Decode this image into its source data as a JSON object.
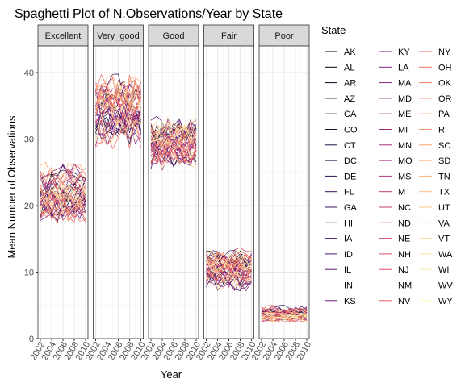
{
  "chart_data": {
    "type": "line",
    "title": "Spaghetti Plot of N.Observations/Year by State",
    "xlabel": "Year",
    "ylabel": "Mean Number of Observations",
    "x_ticks": [
      "2002",
      "2004",
      "2006",
      "2008",
      "2010"
    ],
    "y_ticks": [
      "0",
      "10",
      "20",
      "30",
      "40"
    ],
    "xlim": [
      2002,
      2010
    ],
    "ylim": [
      0,
      44
    ],
    "grid": true,
    "legend_title": "State",
    "legend_position": "right",
    "palette": "magma",
    "facets": [
      {
        "name": "Excellent",
        "center": 22,
        "spread": 3,
        "noise": 2
      },
      {
        "name": "Very_good",
        "center": 34,
        "spread": 3.5,
        "noise": 2.5
      },
      {
        "name": "Good",
        "center": 29.5,
        "spread": 2.5,
        "noise": 1.8
      },
      {
        "name": "Fair",
        "center": 10.5,
        "spread": 2,
        "noise": 1.5
      },
      {
        "name": "Poor",
        "center": 3.7,
        "spread": 0.8,
        "noise": 0.6
      }
    ],
    "states": [
      "AK",
      "AL",
      "AR",
      "AZ",
      "CA",
      "CO",
      "CT",
      "DC",
      "DE",
      "FL",
      "GA",
      "HI",
      "IA",
      "ID",
      "IL",
      "IN",
      "KS",
      "KY",
      "LA",
      "MA",
      "MD",
      "ME",
      "MI",
      "MN",
      "MO",
      "MS",
      "MT",
      "NC",
      "ND",
      "NE",
      "NH",
      "NJ",
      "NM",
      "NV",
      "NY",
      "OH",
      "OK",
      "OR",
      "PA",
      "RI",
      "SC",
      "SD",
      "TN",
      "TX",
      "UT",
      "VA",
      "VT",
      "WA",
      "WI",
      "WV",
      "WY"
    ]
  }
}
